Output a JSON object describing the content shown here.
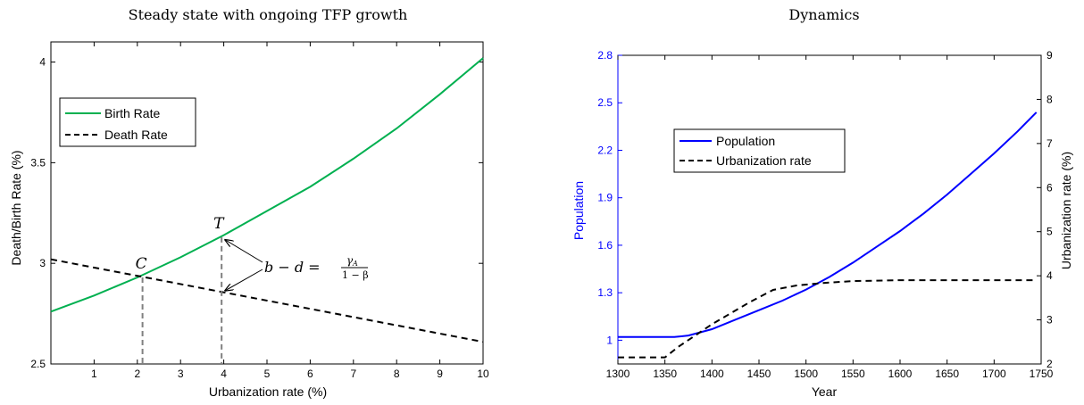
{
  "chart_data": [
    {
      "type": "line",
      "title": "Steady state with ongoing TFP growth",
      "xlabel": "Urbanization rate (%)",
      "ylabel": "Death/Birth Rate (%)",
      "xlim": [
        0,
        10
      ],
      "ylim": [
        2.5,
        4.1
      ],
      "xticks": [
        1,
        2,
        3,
        4,
        5,
        6,
        7,
        8,
        9,
        10
      ],
      "yticks": [
        2.5,
        3,
        3.5,
        4
      ],
      "legend_position": "top-left",
      "series": [
        {
          "name": "Birth Rate",
          "color": "#00b050",
          "style": "solid",
          "x": [
            0,
            1,
            2,
            3,
            4,
            5,
            6,
            7,
            8,
            9,
            10
          ],
          "y": [
            2.76,
            2.84,
            2.93,
            3.03,
            3.14,
            3.26,
            3.38,
            3.52,
            3.67,
            3.84,
            4.02
          ]
        },
        {
          "name": "Death Rate",
          "color": "#000000",
          "style": "dashed",
          "x": [
            0,
            10
          ],
          "y": [
            3.02,
            2.61
          ]
        }
      ],
      "annotations": {
        "C": {
          "label": "C",
          "x": 2.12,
          "y": 2.93
        },
        "T": {
          "label": "T",
          "x": 3.95,
          "y": 3.13,
          "y_death": 2.86
        },
        "equation": {
          "lhs": "b − d = ",
          "numerator": "γ",
          "numerator_sub": "A",
          "denominator": "1 − β"
        }
      }
    },
    {
      "type": "line",
      "title": "Dynamics",
      "xlabel": "Year",
      "ylabel_left": "Population",
      "ylabel_right": "Urbanization rate (%)",
      "xlim": [
        1300,
        1750
      ],
      "ylim_left": [
        0.85,
        2.8
      ],
      "ylim_right": [
        2,
        9
      ],
      "xticks": [
        1300,
        1350,
        1400,
        1450,
        1500,
        1550,
        1600,
        1650,
        1700,
        1750
      ],
      "yticks_left": [
        "1",
        "1.3",
        "1.6",
        "1.9",
        "2.2",
        "2.5",
        "2.8"
      ],
      "yticks_right": [
        2,
        3,
        4,
        5,
        6,
        7,
        8,
        9
      ],
      "left_axis_color": "#0000ff",
      "legend_position": "upper-left-center",
      "series": [
        {
          "name": "Population",
          "axis": "left",
          "color": "#0000ff",
          "style": "solid",
          "x": [
            1300,
            1350,
            1360,
            1375,
            1400,
            1425,
            1450,
            1475,
            1500,
            1525,
            1550,
            1575,
            1600,
            1625,
            1650,
            1675,
            1700,
            1725,
            1745
          ],
          "y": [
            1.02,
            1.02,
            1.02,
            1.03,
            1.07,
            1.13,
            1.19,
            1.25,
            1.32,
            1.4,
            1.49,
            1.59,
            1.69,
            1.8,
            1.92,
            2.05,
            2.18,
            2.32,
            2.44
          ]
        },
        {
          "name": "Urbanization rate",
          "axis": "right",
          "color": "#000000",
          "style": "dashed",
          "x": [
            1300,
            1350,
            1365,
            1400,
            1440,
            1465,
            1490,
            1520,
            1550,
            1600,
            1650,
            1700,
            1745
          ],
          "y": [
            2.15,
            2.15,
            2.4,
            2.9,
            3.4,
            3.68,
            3.78,
            3.84,
            3.88,
            3.9,
            3.9,
            3.9,
            3.9
          ]
        }
      ]
    }
  ]
}
